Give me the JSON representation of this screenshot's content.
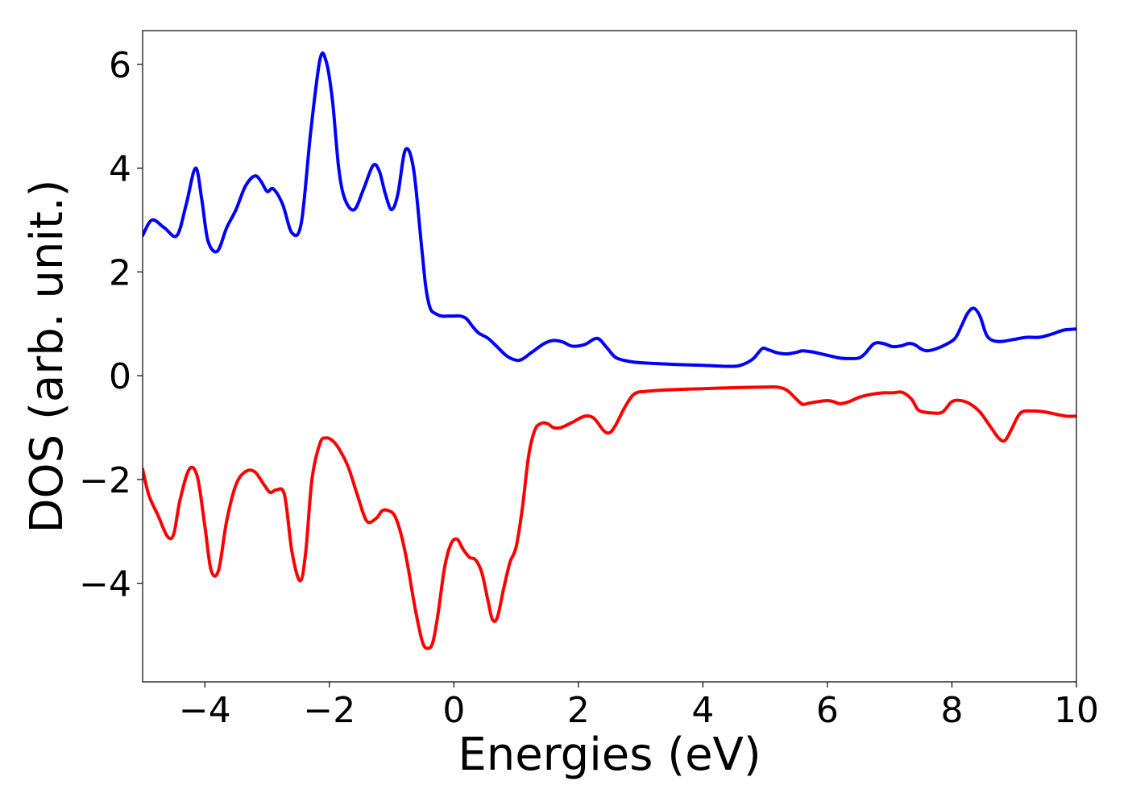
{
  "chart_data": {
    "type": "line",
    "title": "",
    "xlabel": "Energies (eV)",
    "ylabel": "DOS (arb. unit.)",
    "xlim": [
      -5,
      10
    ],
    "ylim": [
      -5.9,
      6.65
    ],
    "xticks": [
      -4,
      -2,
      0,
      2,
      4,
      6,
      8,
      10
    ],
    "yticks": [
      -4,
      -2,
      0,
      2,
      4,
      6
    ],
    "xtick_labels": [
      "−4",
      "−2",
      "0",
      "2",
      "4",
      "6",
      "8",
      "10"
    ],
    "ytick_labels": [
      "−4",
      "−2",
      "0",
      "2",
      "4",
      "6"
    ],
    "grid": false,
    "legend": "none",
    "series": [
      {
        "color": "#0000ff",
        "x": [
          -5.0,
          -4.85,
          -4.65,
          -4.45,
          -4.3,
          -4.15,
          -4.05,
          -3.95,
          -3.8,
          -3.65,
          -3.5,
          -3.35,
          -3.2,
          -3.1,
          -3.0,
          -2.9,
          -2.75,
          -2.6,
          -2.45,
          -2.3,
          -2.15,
          -2.05,
          -1.95,
          -1.85,
          -1.75,
          -1.6,
          -1.45,
          -1.3,
          -1.2,
          -1.1,
          -1.0,
          -0.9,
          -0.78,
          -0.65,
          -0.52,
          -0.45,
          -0.38,
          -0.3,
          -0.2,
          -0.1,
          0.0,
          0.1,
          0.2,
          0.3,
          0.4,
          0.55,
          0.7,
          0.85,
          1.0,
          1.1,
          1.25,
          1.45,
          1.6,
          1.75,
          1.9,
          2.1,
          2.3,
          2.45,
          2.6,
          2.8,
          3.0,
          3.5,
          4.0,
          4.4,
          4.6,
          4.8,
          4.95,
          5.05,
          5.2,
          5.35,
          5.5,
          5.6,
          5.75,
          5.9,
          6.05,
          6.2,
          6.35,
          6.5,
          6.6,
          6.75,
          6.9,
          7.05,
          7.2,
          7.3,
          7.4,
          7.5,
          7.6,
          7.75,
          7.9,
          8.05,
          8.15,
          8.25,
          8.35,
          8.45,
          8.55,
          8.65,
          8.8,
          9.0,
          9.2,
          9.4,
          9.6,
          9.8,
          10.0
        ],
        "y": [
          2.7,
          3.0,
          2.85,
          2.7,
          3.3,
          4.0,
          3.4,
          2.6,
          2.4,
          2.85,
          3.2,
          3.65,
          3.85,
          3.75,
          3.55,
          3.6,
          3.3,
          2.75,
          2.95,
          4.7,
          6.1,
          6.05,
          5.3,
          4.0,
          3.4,
          3.2,
          3.6,
          4.05,
          3.95,
          3.5,
          3.2,
          3.5,
          4.35,
          4.0,
          2.5,
          1.7,
          1.3,
          1.2,
          1.15,
          1.15,
          1.15,
          1.15,
          1.1,
          0.95,
          0.82,
          0.72,
          0.55,
          0.38,
          0.3,
          0.32,
          0.45,
          0.62,
          0.68,
          0.65,
          0.57,
          0.6,
          0.72,
          0.55,
          0.35,
          0.28,
          0.25,
          0.22,
          0.2,
          0.18,
          0.2,
          0.32,
          0.52,
          0.5,
          0.44,
          0.42,
          0.45,
          0.48,
          0.46,
          0.42,
          0.38,
          0.34,
          0.33,
          0.34,
          0.42,
          0.62,
          0.62,
          0.56,
          0.58,
          0.62,
          0.6,
          0.52,
          0.48,
          0.52,
          0.6,
          0.72,
          0.95,
          1.2,
          1.3,
          1.15,
          0.8,
          0.68,
          0.66,
          0.7,
          0.74,
          0.74,
          0.8,
          0.88,
          0.9
        ]
      },
      {
        "color": "#ff0000",
        "x": [
          -5.0,
          -4.9,
          -4.75,
          -4.6,
          -4.5,
          -4.4,
          -4.25,
          -4.12,
          -4.0,
          -3.9,
          -3.78,
          -3.65,
          -3.5,
          -3.35,
          -3.2,
          -3.05,
          -2.95,
          -2.85,
          -2.72,
          -2.6,
          -2.47,
          -2.38,
          -2.28,
          -2.15,
          -2.05,
          -1.95,
          -1.85,
          -1.7,
          -1.55,
          -1.4,
          -1.25,
          -1.15,
          -1.05,
          -0.95,
          -0.85,
          -0.75,
          -0.62,
          -0.5,
          -0.4,
          -0.33,
          -0.25,
          -0.15,
          -0.05,
          0.05,
          0.15,
          0.25,
          0.35,
          0.45,
          0.55,
          0.62,
          0.7,
          0.8,
          0.9,
          1.0,
          1.1,
          1.2,
          1.3,
          1.4,
          1.5,
          1.6,
          1.72,
          1.9,
          2.1,
          2.25,
          2.4,
          2.5,
          2.6,
          2.75,
          2.9,
          3.1,
          3.5,
          4.0,
          4.5,
          5.0,
          5.2,
          5.35,
          5.5,
          5.6,
          5.7,
          5.85,
          6.0,
          6.1,
          6.2,
          6.35,
          6.5,
          6.7,
          6.9,
          7.05,
          7.2,
          7.35,
          7.45,
          7.55,
          7.7,
          7.85,
          8.0,
          8.15,
          8.3,
          8.45,
          8.6,
          8.75,
          8.85,
          8.95,
          9.1,
          9.3,
          9.5,
          9.7,
          9.85,
          10.0
        ],
        "y": [
          -1.8,
          -2.3,
          -2.7,
          -3.1,
          -3.05,
          -2.4,
          -1.8,
          -1.95,
          -2.9,
          -3.75,
          -3.75,
          -2.8,
          -2.1,
          -1.85,
          -1.85,
          -2.1,
          -2.25,
          -2.2,
          -2.3,
          -3.4,
          -3.95,
          -3.4,
          -2.0,
          -1.3,
          -1.2,
          -1.25,
          -1.4,
          -1.75,
          -2.3,
          -2.8,
          -2.75,
          -2.6,
          -2.6,
          -2.7,
          -3.05,
          -3.6,
          -4.5,
          -5.15,
          -5.25,
          -5.1,
          -4.55,
          -3.7,
          -3.25,
          -3.15,
          -3.35,
          -3.5,
          -3.55,
          -3.8,
          -4.35,
          -4.7,
          -4.65,
          -4.1,
          -3.6,
          -3.3,
          -2.55,
          -1.55,
          -1.05,
          -0.92,
          -0.92,
          -1.0,
          -1.0,
          -0.9,
          -0.78,
          -0.82,
          -1.05,
          -1.1,
          -0.95,
          -0.6,
          -0.35,
          -0.3,
          -0.27,
          -0.25,
          -0.23,
          -0.22,
          -0.22,
          -0.28,
          -0.45,
          -0.55,
          -0.53,
          -0.5,
          -0.48,
          -0.5,
          -0.54,
          -0.5,
          -0.42,
          -0.36,
          -0.33,
          -0.33,
          -0.32,
          -0.45,
          -0.65,
          -0.7,
          -0.72,
          -0.7,
          -0.5,
          -0.48,
          -0.55,
          -0.7,
          -0.95,
          -1.2,
          -1.25,
          -1.05,
          -0.72,
          -0.68,
          -0.7,
          -0.75,
          -0.78,
          -0.78
        ]
      }
    ]
  }
}
